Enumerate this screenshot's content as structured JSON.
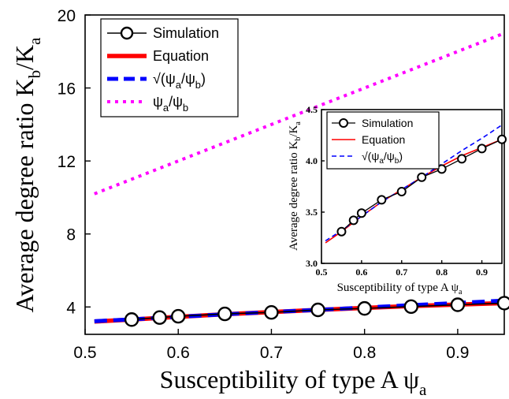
{
  "chart_data": [
    {
      "type": "line",
      "x_axis": {
        "label_main": "Susceptibility of type A ψ",
        "label_sub": "a",
        "range": [
          0.5,
          0.95
        ],
        "ticks": [
          "0.5",
          "0.6",
          "0.7",
          "0.8",
          "0.9"
        ]
      },
      "y_axis": {
        "label_main": "Average degree ratio K",
        "label_sub1": "b",
        "label_mid": "/K",
        "label_sub2": "a",
        "range": [
          2.5,
          20
        ],
        "ticks": [
          "4",
          "8",
          "12",
          "16",
          "20"
        ]
      },
      "legend": {
        "placement": "top-left",
        "simulation": "Simulation",
        "equation": "Equation",
        "sqrt_prefix": "√(ψ",
        "sqrt_sub1": "a",
        "sqrt_mid": "/ψ",
        "sqrt_sub2": "b",
        "sqrt_suffix": ")",
        "ratio_prefix": "ψ",
        "ratio_sub1": "a",
        "ratio_mid": "/ψ",
        "ratio_sub2": "b"
      },
      "series": [
        {
          "name": "Simulation",
          "color": "#000000",
          "style": "circles",
          "x": [
            0.55,
            0.58,
            0.6,
            0.65,
            0.7,
            0.75,
            0.8,
            0.85,
            0.9,
            0.95
          ],
          "y": [
            3.31,
            3.42,
            3.49,
            3.62,
            3.7,
            3.84,
            3.92,
            4.02,
            4.12,
            4.21
          ]
        },
        {
          "name": "Equation",
          "color": "#ff0000",
          "style": "thick-solid",
          "x": [
            0.51,
            0.55,
            0.6,
            0.65,
            0.7,
            0.75,
            0.8,
            0.85,
            0.9,
            0.95
          ],
          "y": [
            3.2,
            3.31,
            3.46,
            3.6,
            3.72,
            3.84,
            3.95,
            4.05,
            4.13,
            4.21
          ]
        },
        {
          "name": "√(ψa/ψb)",
          "color": "#0000ff",
          "style": "thick-dash",
          "x": [
            0.51,
            0.55,
            0.6,
            0.65,
            0.7,
            0.75,
            0.8,
            0.85,
            0.9,
            0.95
          ],
          "y": [
            3.22,
            3.32,
            3.46,
            3.6,
            3.72,
            3.84,
            3.97,
            4.1,
            4.22,
            4.35
          ]
        },
        {
          "name": "ψa/ψb",
          "color": "#ff00ff",
          "style": "dotted",
          "x": [
            0.51,
            0.6,
            0.7,
            0.8,
            0.9,
            0.95
          ],
          "y": [
            10.2,
            12.0,
            14.0,
            16.0,
            18.0,
            19.0
          ]
        }
      ]
    },
    {
      "type": "line",
      "inset": true,
      "x_axis": {
        "label_main": "Susceptibility of type A ψ",
        "label_sub": "a",
        "range": [
          0.5,
          0.95
        ],
        "ticks": [
          "0.5",
          "0.6",
          "0.7",
          "0.8",
          "0.9"
        ]
      },
      "y_axis": {
        "label_main": "Average degree ratio K",
        "label_sub1": "b",
        "label_mid": "/K",
        "label_sub2": "a",
        "range": [
          3.0,
          4.5
        ],
        "ticks": [
          "3.0",
          "3.5",
          "4.0",
          "4.5"
        ]
      },
      "legend": {
        "placement": "top-left",
        "simulation": "Simulation",
        "equation": "Equation",
        "sqrt_prefix": "√(ψ",
        "sqrt_sub1": "a",
        "sqrt_mid": "/ψ",
        "sqrt_sub2": "b",
        "sqrt_suffix": ")"
      },
      "series": [
        {
          "name": "Simulation",
          "color": "#000000",
          "style": "circles",
          "x": [
            0.55,
            0.58,
            0.6,
            0.65,
            0.7,
            0.75,
            0.8,
            0.85,
            0.9,
            0.95
          ],
          "y": [
            3.31,
            3.42,
            3.49,
            3.62,
            3.7,
            3.84,
            3.92,
            4.02,
            4.12,
            4.21
          ]
        },
        {
          "name": "Equation",
          "color": "#ff0000",
          "style": "solid",
          "x": [
            0.51,
            0.55,
            0.6,
            0.65,
            0.7,
            0.75,
            0.8,
            0.85,
            0.9,
            0.95
          ],
          "y": [
            3.2,
            3.31,
            3.46,
            3.6,
            3.72,
            3.84,
            3.95,
            4.05,
            4.13,
            4.21
          ]
        },
        {
          "name": "√(ψa/ψb)",
          "color": "#0000ff",
          "style": "dash",
          "x": [
            0.51,
            0.55,
            0.6,
            0.65,
            0.7,
            0.75,
            0.8,
            0.85,
            0.9,
            0.95
          ],
          "y": [
            3.22,
            3.32,
            3.46,
            3.6,
            3.72,
            3.84,
            3.97,
            4.1,
            4.22,
            4.35
          ]
        }
      ]
    }
  ]
}
